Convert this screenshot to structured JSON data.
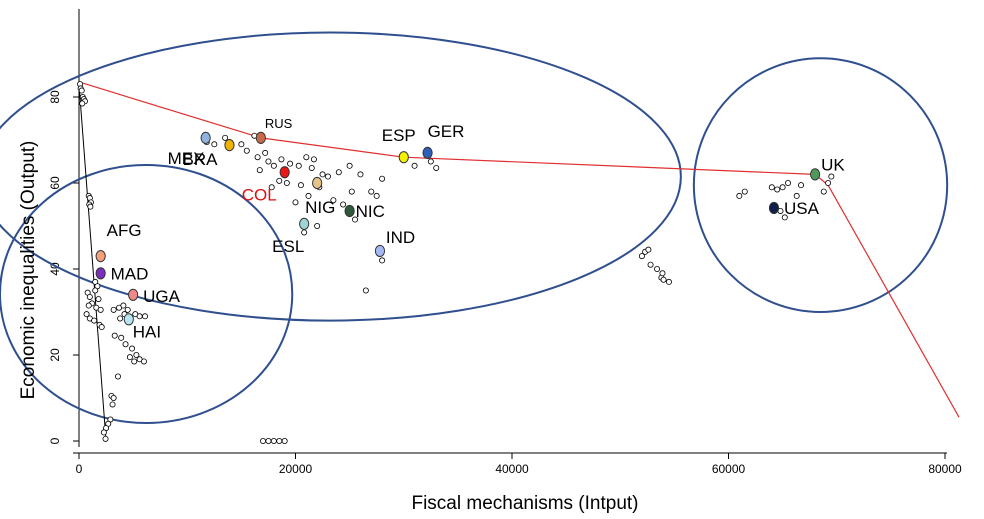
{
  "chart_data": {
    "type": "scatter",
    "xlabel": "Fiscal mechanisms (Intput)",
    "ylabel": "Economic inequalities (Output)",
    "xlim": [
      0,
      82000
    ],
    "ylim": [
      0,
      90
    ],
    "x_ticks": [
      "0",
      "20000",
      "40000",
      "60000",
      "80000"
    ],
    "y_ticks": [
      "0",
      "20",
      "40",
      "60",
      "80"
    ],
    "grid": false,
    "legend": "none",
    "frontier_red": [
      [
        0,
        83.5
      ],
      [
        16800,
        70.5
      ],
      [
        30000,
        66
      ],
      [
        68000,
        62
      ],
      [
        69200,
        59.5
      ],
      [
        81300,
        5.5
      ]
    ],
    "frontier_black": [
      [
        0,
        83
      ],
      [
        2500,
        0
      ]
    ],
    "highlighted_countries": [
      {
        "label": "MEX",
        "x": 11700,
        "y": 70.5,
        "color": "#8fb2e0"
      },
      {
        "label": "RUS",
        "x": 16800,
        "y": 70.5,
        "color": "#c86a4a"
      },
      {
        "label": "BRA",
        "x": 13900,
        "y": 68.8,
        "color": "#f0b400"
      },
      {
        "label": "COL",
        "x": 19000,
        "y": 62.5,
        "color": "#e81818",
        "label_color": "#e01010"
      },
      {
        "label": "NIG",
        "x": 22000,
        "y": 60,
        "color": "#e6c488"
      },
      {
        "label": "ESP",
        "x": 30000,
        "y": 66,
        "color": "#f5f000"
      },
      {
        "label": "GER",
        "x": 32200,
        "y": 67,
        "color": "#2f5fb6"
      },
      {
        "label": "NIC",
        "x": 25000,
        "y": 53.5,
        "color": "#2e5a3a"
      },
      {
        "label": "ESL",
        "x": 20800,
        "y": 50.5,
        "color": "#9fd4d4"
      },
      {
        "label": "IND",
        "x": 27800,
        "y": 44.2,
        "color": "#a6b8f4"
      },
      {
        "label": "AFG",
        "x": 2000,
        "y": 43,
        "color": "#f2a07a"
      },
      {
        "label": "MAD",
        "x": 2000,
        "y": 39,
        "color": "#7b2fbe"
      },
      {
        "label": "UGA",
        "x": 5000,
        "y": 34,
        "color": "#f08a8a"
      },
      {
        "label": "HAI",
        "x": 4600,
        "y": 28.3,
        "color": "#b8e6f0"
      },
      {
        "label": "UK",
        "x": 68000,
        "y": 62,
        "color": "#4f9a5a"
      },
      {
        "label": "USA",
        "x": 64200,
        "y": 54.2,
        "color": "#10204a"
      }
    ],
    "points": [
      [
        100,
        83
      ],
      [
        150,
        82
      ],
      [
        250,
        81.5
      ],
      [
        350,
        80
      ],
      [
        450,
        79.5
      ],
      [
        550,
        79
      ],
      [
        300,
        78.5
      ],
      [
        900,
        57
      ],
      [
        1000,
        56.5
      ],
      [
        1100,
        55.5
      ],
      [
        950,
        55
      ],
      [
        1050,
        54.5
      ],
      [
        1500,
        37
      ],
      [
        1700,
        36
      ],
      [
        1500,
        35
      ],
      [
        800,
        34.5
      ],
      [
        1000,
        33.5
      ],
      [
        1800,
        33
      ],
      [
        1200,
        32
      ],
      [
        900,
        31.5
      ],
      [
        1600,
        31
      ],
      [
        2000,
        30.5
      ],
      [
        700,
        29.5
      ],
      [
        1000,
        28.5
      ],
      [
        1400,
        28
      ],
      [
        1900,
        27
      ],
      [
        2100,
        26.5
      ],
      [
        3200,
        30.5
      ],
      [
        3700,
        31
      ],
      [
        4100,
        31.5
      ],
      [
        4500,
        30.5
      ],
      [
        4200,
        29.5
      ],
      [
        3800,
        28.5
      ],
      [
        5200,
        29.5
      ],
      [
        5600,
        29
      ],
      [
        6100,
        29
      ],
      [
        3300,
        24.5
      ],
      [
        3900,
        24
      ],
      [
        4300,
        22.5
      ],
      [
        4900,
        21.5
      ],
      [
        5300,
        20
      ],
      [
        4700,
        19.5
      ],
      [
        5600,
        19
      ],
      [
        5100,
        18.5
      ],
      [
        6000,
        18.5
      ],
      [
        3600,
        15
      ],
      [
        3000,
        10.5
      ],
      [
        3200,
        10
      ],
      [
        3100,
        8.5
      ],
      [
        2900,
        5
      ],
      [
        2700,
        4
      ],
      [
        2500,
        3
      ],
      [
        2300,
        2
      ],
      [
        2450,
        0.5
      ],
      [
        17000,
        0
      ],
      [
        17500,
        0
      ],
      [
        18000,
        0
      ],
      [
        18500,
        0
      ],
      [
        19000,
        0
      ],
      [
        11800,
        69.5
      ],
      [
        12500,
        69
      ],
      [
        13500,
        70.5
      ],
      [
        15000,
        69
      ],
      [
        15500,
        67.5
      ],
      [
        16200,
        71
      ],
      [
        16500,
        66
      ],
      [
        17200,
        67
      ],
      [
        17500,
        65
      ],
      [
        16700,
        63
      ],
      [
        18000,
        64
      ],
      [
        18700,
        65.5
      ],
      [
        19500,
        64.5
      ],
      [
        20300,
        64
      ],
      [
        21000,
        66
      ],
      [
        21700,
        65.5
      ],
      [
        21500,
        63.5
      ],
      [
        22500,
        62
      ],
      [
        23000,
        61.5
      ],
      [
        24000,
        62.5
      ],
      [
        17800,
        59
      ],
      [
        18500,
        60.5
      ],
      [
        19200,
        60
      ],
      [
        20500,
        59.5
      ],
      [
        21200,
        57
      ],
      [
        22200,
        59
      ],
      [
        23500,
        56
      ],
      [
        24400,
        55
      ],
      [
        20000,
        55.5
      ],
      [
        25500,
        51.5
      ],
      [
        20800,
        48.5
      ],
      [
        22000,
        50
      ],
      [
        25200,
        58
      ],
      [
        25000,
        64
      ],
      [
        26000,
        62
      ],
      [
        28000,
        61
      ],
      [
        27000,
        58
      ],
      [
        27500,
        57
      ],
      [
        26500,
        35
      ],
      [
        28000,
        42
      ],
      [
        31000,
        64
      ],
      [
        32500,
        65
      ],
      [
        33000,
        63.5
      ],
      [
        52000,
        43
      ],
      [
        52300,
        44
      ],
      [
        52600,
        44.5
      ],
      [
        52800,
        41
      ],
      [
        53400,
        40
      ],
      [
        53800,
        38
      ],
      [
        54000,
        37.5
      ],
      [
        54500,
        37
      ],
      [
        53900,
        39
      ],
      [
        61000,
        57
      ],
      [
        61500,
        58
      ],
      [
        64000,
        59
      ],
      [
        64500,
        58.5
      ],
      [
        65000,
        59
      ],
      [
        65500,
        60
      ],
      [
        64800,
        53.5
      ],
      [
        65200,
        52
      ],
      [
        66700,
        59.5
      ],
      [
        66300,
        57
      ],
      [
        68800,
        58
      ],
      [
        69200,
        60
      ],
      [
        69500,
        61.5
      ]
    ]
  },
  "ellipses": [
    {
      "name": "ellipse-low-income",
      "cx": 6200,
      "cy": 34.2,
      "rx": 13500,
      "ry": 30
    },
    {
      "name": "ellipse-middle-income",
      "cx": 23200,
      "cy": 61.5,
      "rx": 32400,
      "ry": 33.5
    },
    {
      "name": "ellipse-high-income",
      "cx": 68500,
      "cy": 59.5,
      "rx": 11700,
      "ry": 29.5
    }
  ]
}
